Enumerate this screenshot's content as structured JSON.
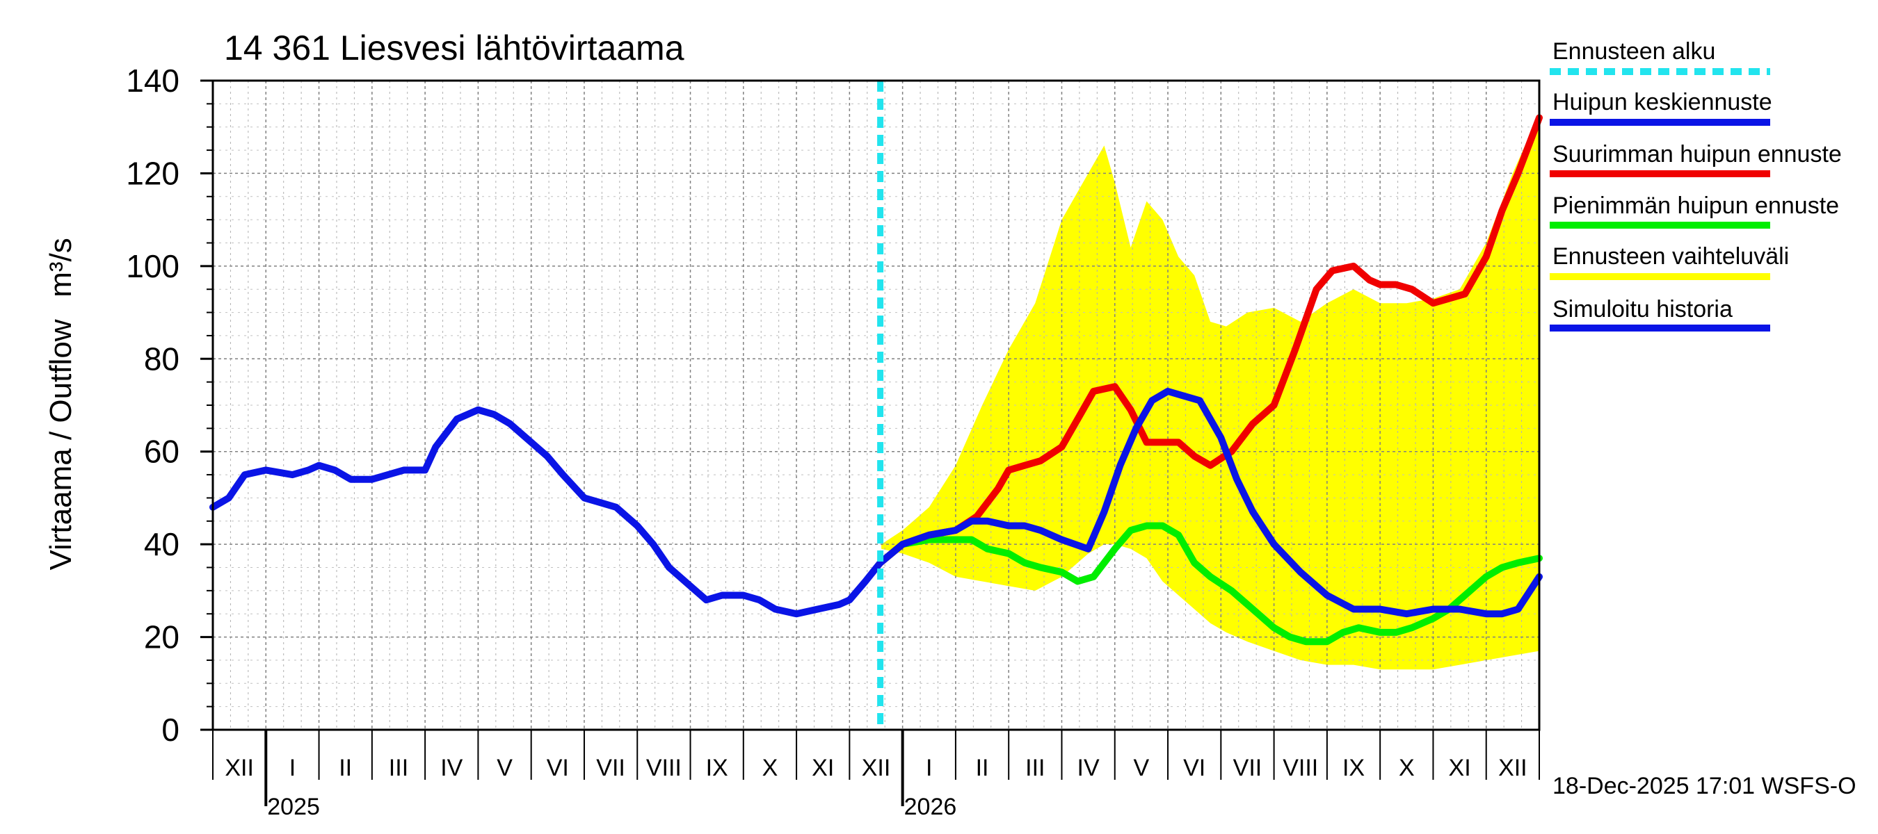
{
  "chart_data": {
    "type": "line",
    "title": "14 361 Liesvesi lähtövirtaama",
    "ylabel": "Virtaama / Outflow",
    "yunit": "m³/s",
    "ylim": [
      0,
      140
    ],
    "yticks": [
      0,
      20,
      40,
      60,
      80,
      100,
      120,
      140
    ],
    "xlim": [
      0,
      25
    ],
    "grid": true,
    "month_labels": [
      {
        "label": "XII",
        "center": 0.5
      },
      {
        "label": "I",
        "center": 1.5
      },
      {
        "label": "II",
        "center": 2.5
      },
      {
        "label": "III",
        "center": 3.5
      },
      {
        "label": "IV",
        "center": 4.5
      },
      {
        "label": "V",
        "center": 5.5
      },
      {
        "label": "VI",
        "center": 6.5
      },
      {
        "label": "VII",
        "center": 7.5
      },
      {
        "label": "VIII",
        "center": 8.5
      },
      {
        "label": "IX",
        "center": 9.5
      },
      {
        "label": "X",
        "center": 10.5
      },
      {
        "label": "XI",
        "center": 11.5
      },
      {
        "label": "XII",
        "center": 12.5
      },
      {
        "label": "I",
        "center": 13.5
      },
      {
        "label": "II",
        "center": 14.5
      },
      {
        "label": "III",
        "center": 15.5
      },
      {
        "label": "IV",
        "center": 16.5
      },
      {
        "label": "V",
        "center": 17.5
      },
      {
        "label": "VI",
        "center": 18.5
      },
      {
        "label": "VII",
        "center": 19.5
      },
      {
        "label": "VIII",
        "center": 20.5
      },
      {
        "label": "IX",
        "center": 21.5
      },
      {
        "label": "X",
        "center": 22.5
      },
      {
        "label": "XI",
        "center": 23.5
      },
      {
        "label": "XII",
        "center": 24.5
      }
    ],
    "year_labels": [
      {
        "label": "2025",
        "x": 1
      },
      {
        "label": "2026",
        "x": 13
      }
    ],
    "forecast_start_x": 12.58,
    "legend": [
      {
        "label": "Ennusteen alku",
        "color": "#22e4ee",
        "style": "dashed"
      },
      {
        "label": "Huipun keskiennuste",
        "color": "#0a14e6",
        "style": "solid"
      },
      {
        "label": "Suurimman huipun ennuste",
        "color": "#f00000",
        "style": "solid"
      },
      {
        "label": "Pienimmän huipun ennuste",
        "color": "#00ee00",
        "style": "solid"
      },
      {
        "label": "Ennusteen vaihteluväli",
        "color": "#ffff00",
        "style": "band"
      },
      {
        "label": "Simuloitu historia",
        "color": "#0a14e6",
        "style": "solid"
      }
    ],
    "band": {
      "name": "Ennusteen vaihteluväli",
      "x": [
        12.6,
        13.0,
        13.5,
        14.0,
        14.5,
        15.0,
        15.5,
        16.0,
        16.5,
        16.8,
        17.0,
        17.3,
        17.6,
        17.9,
        18.2,
        18.5,
        18.8,
        19.1,
        19.5,
        20.0,
        20.5,
        21.0,
        21.5,
        22.0,
        22.5,
        23.0,
        23.5,
        24.0,
        24.5,
        25.0
      ],
      "upper": [
        40,
        43,
        48,
        57,
        70,
        82,
        92,
        110,
        120,
        126,
        118,
        104,
        114,
        110,
        102,
        98,
        88,
        87,
        90,
        91,
        88,
        92,
        95,
        92,
        92,
        93,
        95,
        105,
        120,
        133
      ],
      "lower": [
        39,
        38,
        36,
        33,
        32,
        31,
        30,
        33,
        38,
        40,
        40,
        39,
        37,
        32,
        29,
        26,
        23,
        21,
        19,
        17,
        15,
        14,
        14,
        13,
        13,
        13,
        14,
        15,
        16,
        17
      ]
    },
    "series": [
      {
        "name": "Simuloitu historia",
        "color": "#0a14e6",
        "x": [
          0,
          0.3,
          0.6,
          1.0,
          1.5,
          1.8,
          2.0,
          2.3,
          2.6,
          3.0,
          3.3,
          3.6,
          4.0,
          4.2,
          4.6,
          5.0,
          5.3,
          5.6,
          6.0,
          6.3,
          6.6,
          7.0,
          7.3,
          7.6,
          8.0,
          8.3,
          8.6,
          9.0,
          9.3,
          9.6,
          10.0,
          10.3,
          10.6,
          11.0,
          11.4,
          11.8,
          12.0,
          12.3,
          12.58
        ],
        "y": [
          48,
          50,
          55,
          56,
          55,
          56,
          57,
          56,
          54,
          54,
          55,
          56,
          56,
          61,
          67,
          69,
          68,
          66,
          62,
          59,
          55,
          50,
          49,
          48,
          44,
          40,
          35,
          31,
          28,
          29,
          29,
          28,
          26,
          25,
          26,
          27,
          28,
          32,
          36
        ]
      },
      {
        "name": "Huipun keskiennuste",
        "color": "#0a14e6",
        "x": [
          12.58,
          13.0,
          13.5,
          14.0,
          14.3,
          14.6,
          15.0,
          15.3,
          15.6,
          16.0,
          16.5,
          16.8,
          17.1,
          17.4,
          17.7,
          18.0,
          18.3,
          18.6,
          19.0,
          19.3,
          19.6,
          20.0,
          20.5,
          21.0,
          21.5,
          22.0,
          22.5,
          23.0,
          23.5,
          24.0,
          24.3,
          24.6,
          25.0
        ],
        "y": [
          36,
          40,
          42,
          43,
          45,
          45,
          44,
          44,
          43,
          41,
          39,
          47,
          57,
          65,
          71,
          73,
          72,
          71,
          63,
          54,
          47,
          40,
          34,
          29,
          26,
          26,
          25,
          26,
          26,
          25,
          25,
          26,
          33
        ]
      },
      {
        "name": "Suurimman huipun ennuste",
        "color": "#f00000",
        "x": [
          12.58,
          13.0,
          13.5,
          14.0,
          14.4,
          14.8,
          15.0,
          15.3,
          15.6,
          16.0,
          16.3,
          16.6,
          17.0,
          17.3,
          17.6,
          17.9,
          18.2,
          18.5,
          18.8,
          19.2,
          19.6,
          20.0,
          20.4,
          20.8,
          21.1,
          21.5,
          21.8,
          22.0,
          22.3,
          22.6,
          23.0,
          23.3,
          23.6,
          24.0,
          24.3,
          24.6,
          25.0
        ],
        "y": [
          36,
          40,
          42,
          43,
          46,
          52,
          56,
          57,
          58,
          61,
          67,
          73,
          74,
          69,
          62,
          62,
          62,
          59,
          57,
          60,
          66,
          70,
          82,
          95,
          99,
          100,
          97,
          96,
          96,
          95,
          92,
          93,
          94,
          102,
          112,
          120,
          132
        ]
      },
      {
        "name": "Pienimmän huipun ennuste",
        "color": "#00ee00",
        "x": [
          12.58,
          13.0,
          13.5,
          14.0,
          14.3,
          14.6,
          15.0,
          15.3,
          15.6,
          16.0,
          16.3,
          16.6,
          17.0,
          17.3,
          17.6,
          17.9,
          18.2,
          18.5,
          18.8,
          19.2,
          19.6,
          20.0,
          20.3,
          20.6,
          21.0,
          21.3,
          21.6,
          22.0,
          22.3,
          22.6,
          23.0,
          23.3,
          23.6,
          24.0,
          24.3,
          24.6,
          25.0
        ],
        "y": [
          36,
          40,
          41,
          41,
          41,
          39,
          38,
          36,
          35,
          34,
          32,
          33,
          39,
          43,
          44,
          44,
          42,
          36,
          33,
          30,
          26,
          22,
          20,
          19,
          19,
          21,
          22,
          21,
          21,
          22,
          24,
          26,
          29,
          33,
          35,
          36,
          37
        ]
      }
    ],
    "footer": "18-Dec-2025 17:01 WSFS-O"
  }
}
